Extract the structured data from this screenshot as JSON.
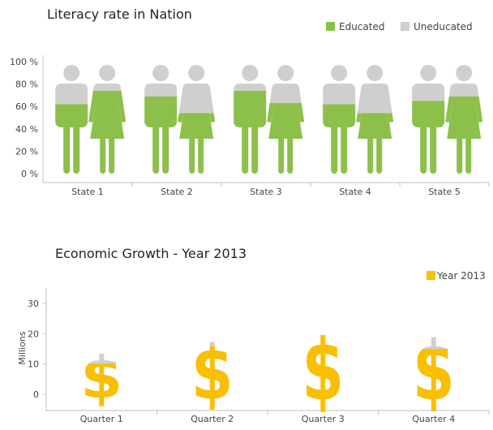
{
  "chart_data": [
    {
      "type": "bar",
      "title": "Literacy rate in Nation",
      "categories": [
        "State 1",
        "State 2",
        "State 3",
        "State 4",
        "State 5"
      ],
      "y_ticks": [
        "0 %",
        "20 %",
        "40 %",
        "60 %",
        "80 %",
        "100 %"
      ],
      "ylim": [
        0,
        100
      ],
      "legend_position": "top-right",
      "series": [
        {
          "name": "Educated",
          "color": "#8cc04b"
        },
        {
          "name": "Uneducated",
          "color": "#cfcfcf"
        }
      ],
      "values": [
        {
          "male": 62,
          "female": 74
        },
        {
          "male": 69,
          "female": 54
        },
        {
          "male": 74,
          "female": 63
        },
        {
          "male": 62,
          "female": 54
        },
        {
          "male": 65,
          "female": 69
        }
      ]
    },
    {
      "type": "bar",
      "title": "Economic Growth - Year 2013",
      "ylabel": "Millions",
      "categories": [
        "Quarter 1",
        "Quarter 2",
        "Quarter 3",
        "Quarter 4"
      ],
      "y_ticks": [
        "0",
        "10",
        "20",
        "30"
      ],
      "ylim": [
        0,
        30
      ],
      "legend_position": "top-right",
      "series": [
        {
          "name": "Year 2013",
          "color": "#f9bf00",
          "values": [
            17,
            22,
            25,
            24
          ]
        }
      ],
      "fill_values": [
        10,
        16,
        20,
        15
      ],
      "unfilled_color": "#cfcfcf"
    }
  ]
}
